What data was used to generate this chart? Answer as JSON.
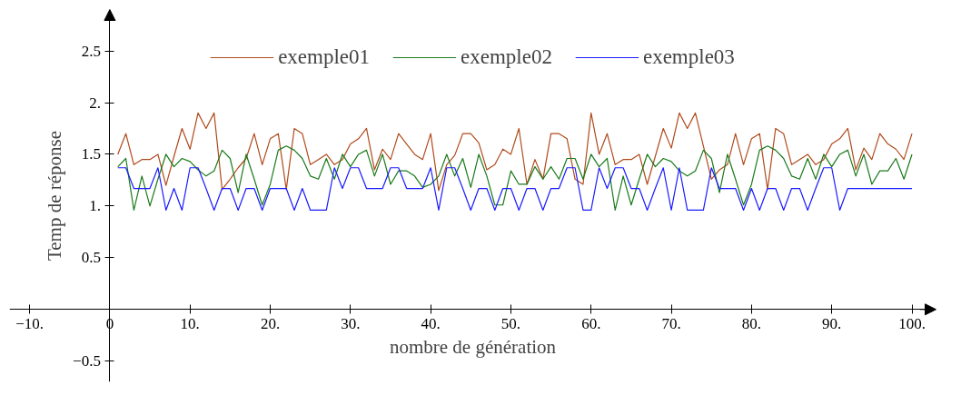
{
  "chart_data": {
    "type": "line",
    "xlabel": "nombre de génération",
    "ylabel": "Temp de réponse",
    "x": [
      1,
      2,
      3,
      4,
      5,
      6,
      7,
      8,
      9,
      10,
      11,
      12,
      13,
      14,
      15,
      16,
      17,
      18,
      19,
      20,
      21,
      22,
      23,
      24,
      25,
      26,
      27,
      28,
      29,
      30,
      31,
      32,
      33,
      34,
      35,
      36,
      37,
      38,
      39,
      40,
      41,
      42,
      43,
      44,
      45,
      46,
      47,
      48,
      49,
      50,
      51,
      52,
      53,
      54,
      55,
      56,
      57,
      58,
      59,
      60,
      61,
      62,
      63,
      64,
      65,
      66,
      67,
      68,
      69,
      70,
      71,
      72,
      73,
      74,
      75,
      76,
      77,
      78,
      79,
      80,
      81,
      82,
      83,
      84,
      85,
      86,
      87,
      88,
      89,
      90,
      91,
      92,
      93,
      94,
      95,
      96,
      97,
      98,
      99,
      100
    ],
    "series": [
      {
        "name": "exemple01",
        "color": "#b04a1c",
        "values": [
          1.5,
          1.7,
          1.4,
          1.45,
          1.45,
          1.5,
          1.2,
          1.48,
          1.75,
          1.55,
          1.9,
          1.75,
          1.9,
          1.16,
          1.26,
          1.37,
          1.46,
          1.7,
          1.4,
          1.65,
          1.7,
          1.16,
          1.75,
          1.7,
          1.4,
          1.45,
          1.5,
          1.4,
          1.45,
          1.6,
          1.65,
          1.75,
          1.35,
          1.55,
          1.45,
          1.7,
          1.6,
          1.5,
          1.45,
          1.7,
          1.15,
          1.4,
          1.49,
          1.7,
          1.7,
          1.61,
          1.35,
          1.4,
          1.55,
          1.5,
          1.75,
          1.21,
          1.45,
          1.26,
          1.7,
          1.7,
          1.65,
          1.26,
          1.21,
          1.9,
          1.5,
          1.7,
          1.4,
          1.45,
          1.45,
          1.5,
          1.21,
          1.48,
          1.75,
          1.56,
          1.9,
          1.75,
          1.9,
          1.58,
          1.26,
          1.35,
          1.4,
          1.7,
          1.4,
          1.65,
          1.7,
          1.16,
          1.75,
          1.7,
          1.4,
          1.45,
          1.5,
          1.4,
          1.45,
          1.6,
          1.65,
          1.75,
          1.35,
          1.56,
          1.45,
          1.7,
          1.6,
          1.55,
          1.45,
          1.7
        ]
      },
      {
        "name": "exemple02",
        "color": "#1a7a1a",
        "values": [
          1.38,
          1.46,
          0.96,
          1.29,
          1.0,
          1.26,
          1.5,
          1.38,
          1.46,
          1.43,
          1.35,
          1.29,
          1.34,
          1.54,
          1.46,
          1.13,
          1.5,
          1.26,
          1.01,
          1.21,
          1.54,
          1.58,
          1.54,
          1.46,
          1.29,
          1.26,
          1.46,
          1.26,
          1.5,
          1.38,
          1.5,
          1.54,
          1.29,
          1.5,
          1.21,
          1.34,
          1.34,
          1.29,
          1.18,
          1.21,
          1.29,
          1.5,
          1.29,
          1.46,
          1.18,
          1.5,
          1.29,
          1.01,
          1.01,
          1.34,
          1.21,
          1.21,
          1.38,
          1.26,
          1.38,
          1.26,
          1.46,
          1.46,
          1.26,
          1.5,
          1.38,
          1.46,
          0.96,
          1.29,
          1.01,
          1.26,
          1.5,
          1.38,
          1.46,
          1.43,
          1.34,
          1.29,
          1.34,
          1.54,
          1.46,
          1.13,
          1.5,
          1.26,
          1.01,
          1.21,
          1.54,
          1.58,
          1.54,
          1.46,
          1.29,
          1.26,
          1.46,
          1.26,
          1.5,
          1.38,
          1.5,
          1.54,
          1.29,
          1.5,
          1.21,
          1.34,
          1.34,
          1.46,
          1.26,
          1.5
        ]
      },
      {
        "name": "exemple03",
        "color": "#1a1aff",
        "values": [
          1.37,
          1.37,
          1.17,
          1.17,
          1.17,
          1.37,
          0.96,
          1.17,
          0.96,
          1.37,
          1.37,
          1.17,
          0.96,
          1.17,
          1.17,
          0.96,
          1.17,
          1.17,
          0.96,
          1.17,
          1.17,
          1.17,
          0.96,
          1.17,
          0.96,
          0.96,
          0.96,
          1.37,
          1.17,
          1.37,
          1.37,
          1.17,
          1.17,
          1.17,
          1.37,
          1.37,
          1.17,
          1.17,
          1.17,
          1.37,
          0.96,
          1.37,
          1.37,
          1.17,
          0.96,
          1.17,
          1.17,
          0.96,
          1.17,
          1.17,
          0.96,
          1.17,
          1.17,
          0.96,
          1.17,
          1.17,
          1.37,
          1.37,
          0.96,
          0.96,
          1.37,
          1.17,
          1.37,
          1.37,
          1.17,
          1.17,
          0.96,
          1.17,
          1.37,
          0.96,
          1.37,
          0.96,
          0.96,
          0.96,
          1.37,
          1.17,
          1.17,
          1.17,
          0.96,
          1.17,
          0.96,
          1.17,
          1.17,
          0.96,
          1.17,
          1.17,
          0.96,
          1.17,
          1.37,
          1.37,
          0.96,
          1.17,
          1.17,
          1.17,
          1.17,
          1.17,
          1.17,
          1.17,
          1.17,
          1.17
        ]
      }
    ],
    "xlim": [
      -12.5,
      103
    ],
    "ylim": [
      -0.7,
      2.9
    ],
    "xticks": [
      {
        "value": -10,
        "label": "−10."
      },
      0,
      {
        "value": 10,
        "label": "10."
      },
      {
        "value": 20,
        "label": "20."
      },
      {
        "value": 30,
        "label": "30."
      },
      {
        "value": 40,
        "label": "40."
      },
      {
        "value": 50,
        "label": "50."
      },
      {
        "value": 60,
        "label": "60."
      },
      {
        "value": 70,
        "label": "70."
      },
      {
        "value": 80,
        "label": "80."
      },
      {
        "value": 90,
        "label": "90."
      },
      {
        "value": 100,
        "label": "100."
      }
    ],
    "yticks": [
      {
        "value": -0.5,
        "label": "−0.5"
      },
      0.5,
      {
        "value": 1,
        "label": "1."
      },
      1.5,
      {
        "value": 2,
        "label": "2."
      },
      2.5
    ],
    "legend": "top",
    "grid": false,
    "marker": "none",
    "line_style": "solid"
  }
}
